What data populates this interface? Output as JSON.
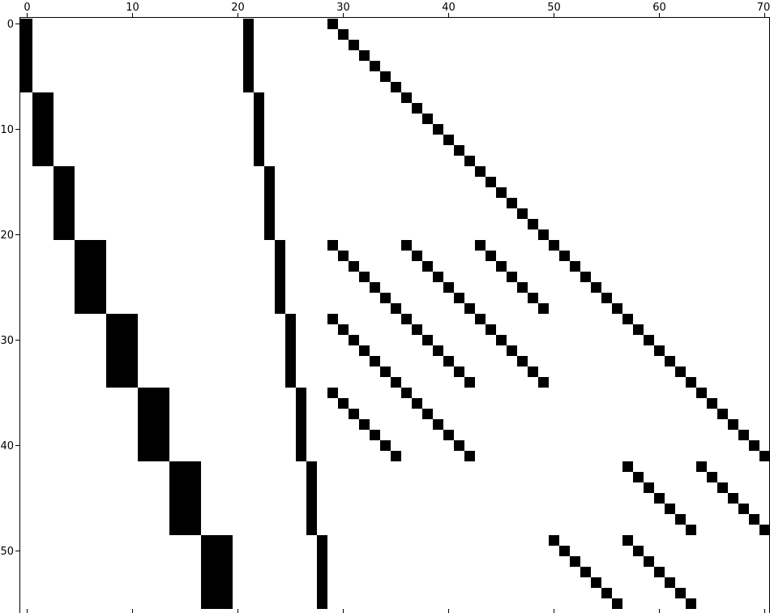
{
  "chart_data": {
    "type": "heatmap",
    "description": "sparsity pattern (spy plot) of a binary matrix, filled cells are nonzeros",
    "n_rows": 56,
    "n_cols": 71,
    "x_ticks": [
      0,
      10,
      20,
      30,
      40,
      50,
      60,
      70
    ],
    "y_ticks": [
      0,
      10,
      20,
      30,
      40,
      50
    ],
    "xlim": [
      -0.5,
      70.5
    ],
    "ylim": [
      55.5,
      -0.5
    ],
    "x_axis_position": "top",
    "grid": false,
    "legend": "none",
    "nonzero_blocks": [
      {
        "rows": [
          0,
          6
        ],
        "cols": [
          -1,
          0
        ]
      },
      {
        "rows": [
          7,
          13
        ],
        "cols": [
          1,
          2
        ]
      },
      {
        "rows": [
          14,
          20
        ],
        "cols": [
          3,
          4
        ]
      },
      {
        "rows": [
          21,
          27
        ],
        "cols": [
          5,
          7
        ]
      },
      {
        "rows": [
          28,
          34
        ],
        "cols": [
          8,
          10
        ]
      },
      {
        "rows": [
          35,
          41
        ],
        "cols": [
          11,
          13
        ]
      },
      {
        "rows": [
          42,
          48
        ],
        "cols": [
          14,
          16
        ]
      },
      {
        "rows": [
          49,
          55
        ],
        "cols": [
          17,
          19
        ]
      }
    ],
    "nonzero_columns": [
      {
        "rows": [
          0,
          6
        ],
        "col": 21
      },
      {
        "rows": [
          7,
          13
        ],
        "col": 22
      },
      {
        "rows": [
          14,
          20
        ],
        "col": 23
      },
      {
        "rows": [
          21,
          27
        ],
        "col": 24
      },
      {
        "rows": [
          28,
          34
        ],
        "col": 25
      },
      {
        "rows": [
          35,
          41
        ],
        "col": 26
      },
      {
        "rows": [
          42,
          48
        ],
        "col": 27
      },
      {
        "rows": [
          49,
          55
        ],
        "col": 28
      }
    ],
    "nonzero_diagonals": [
      {
        "row_start": 0,
        "col_start": 29,
        "length": 42
      },
      {
        "row_start": 21,
        "col_start": 29,
        "length": 7
      },
      {
        "row_start": 21,
        "col_start": 36,
        "length": 7
      },
      {
        "row_start": 21,
        "col_start": 43,
        "length": 7
      },
      {
        "row_start": 28,
        "col_start": 29,
        "length": 7
      },
      {
        "row_start": 28,
        "col_start": 36,
        "length": 7
      },
      {
        "row_start": 28,
        "col_start": 43,
        "length": 7
      },
      {
        "row_start": 35,
        "col_start": 29,
        "length": 7
      },
      {
        "row_start": 35,
        "col_start": 36,
        "length": 7
      },
      {
        "row_start": 42,
        "col_start": 57,
        "length": 7
      },
      {
        "row_start": 42,
        "col_start": 64,
        "length": 7
      },
      {
        "row_start": 49,
        "col_start": 50,
        "length": 7
      },
      {
        "row_start": 49,
        "col_start": 57,
        "length": 7
      }
    ],
    "fill_color": "#000000",
    "background_color": "#ffffff"
  }
}
